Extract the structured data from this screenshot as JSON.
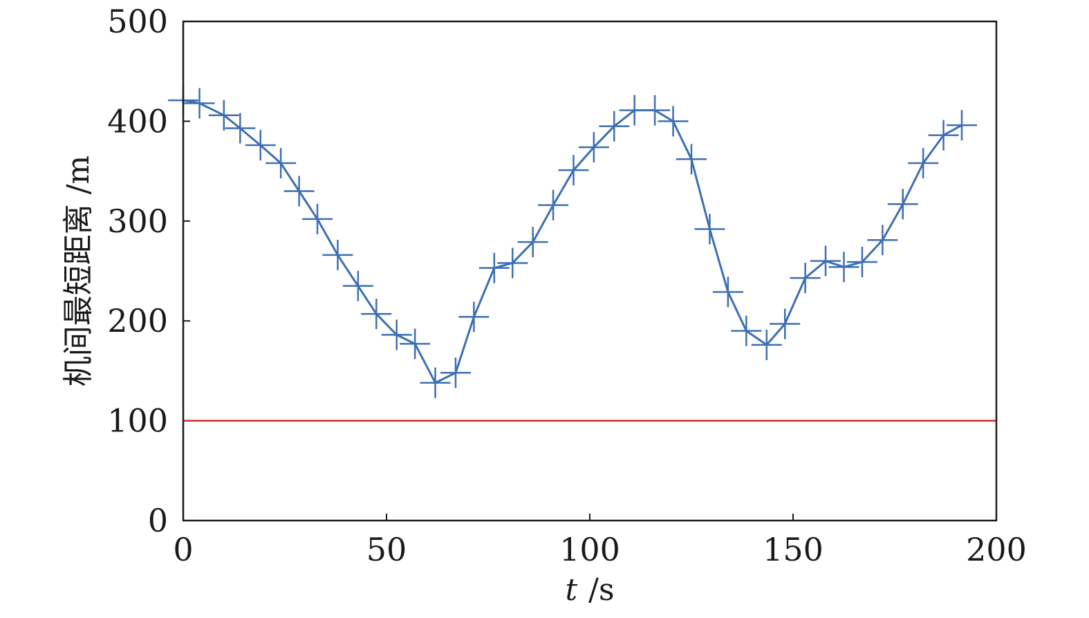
{
  "chart_data": {
    "type": "line",
    "xlabel_var": "t",
    "xlabel_unit": "/s",
    "ylabel": "机间最短距离 /m",
    "xlim": [
      0,
      200
    ],
    "ylim": [
      0,
      500
    ],
    "x_ticks": [
      0,
      50,
      100,
      150,
      200
    ],
    "y_ticks": [
      0,
      100,
      200,
      300,
      400,
      500
    ],
    "grid": false,
    "series": [
      {
        "color": "#3c6eb4",
        "marker": "plus",
        "x": [
          0,
          4,
          10,
          14,
          19,
          24,
          28.5,
          33,
          38,
          43,
          47.5,
          52.5,
          57,
          62,
          67,
          71.5,
          76.5,
          81,
          86,
          91,
          96,
          101,
          106,
          111,
          116,
          120.5,
          125,
          129.5,
          134,
          138.5,
          143.5,
          148,
          153,
          158,
          162.5,
          167,
          172,
          177,
          182,
          187,
          191.5
        ],
        "y": [
          421,
          418,
          406,
          393,
          376,
          358,
          330,
          302,
          266,
          235,
          207,
          186,
          177,
          138,
          148,
          204,
          253,
          258,
          279,
          316,
          351,
          374,
          395,
          411,
          411,
          400,
          362,
          292,
          229,
          190,
          176,
          197,
          243,
          260,
          254,
          259,
          281,
          317,
          358,
          386,
          396
        ]
      },
      {
        "color": "#d62728",
        "marker": "none",
        "x": [
          0,
          200
        ],
        "y": [
          100,
          100
        ]
      }
    ]
  }
}
